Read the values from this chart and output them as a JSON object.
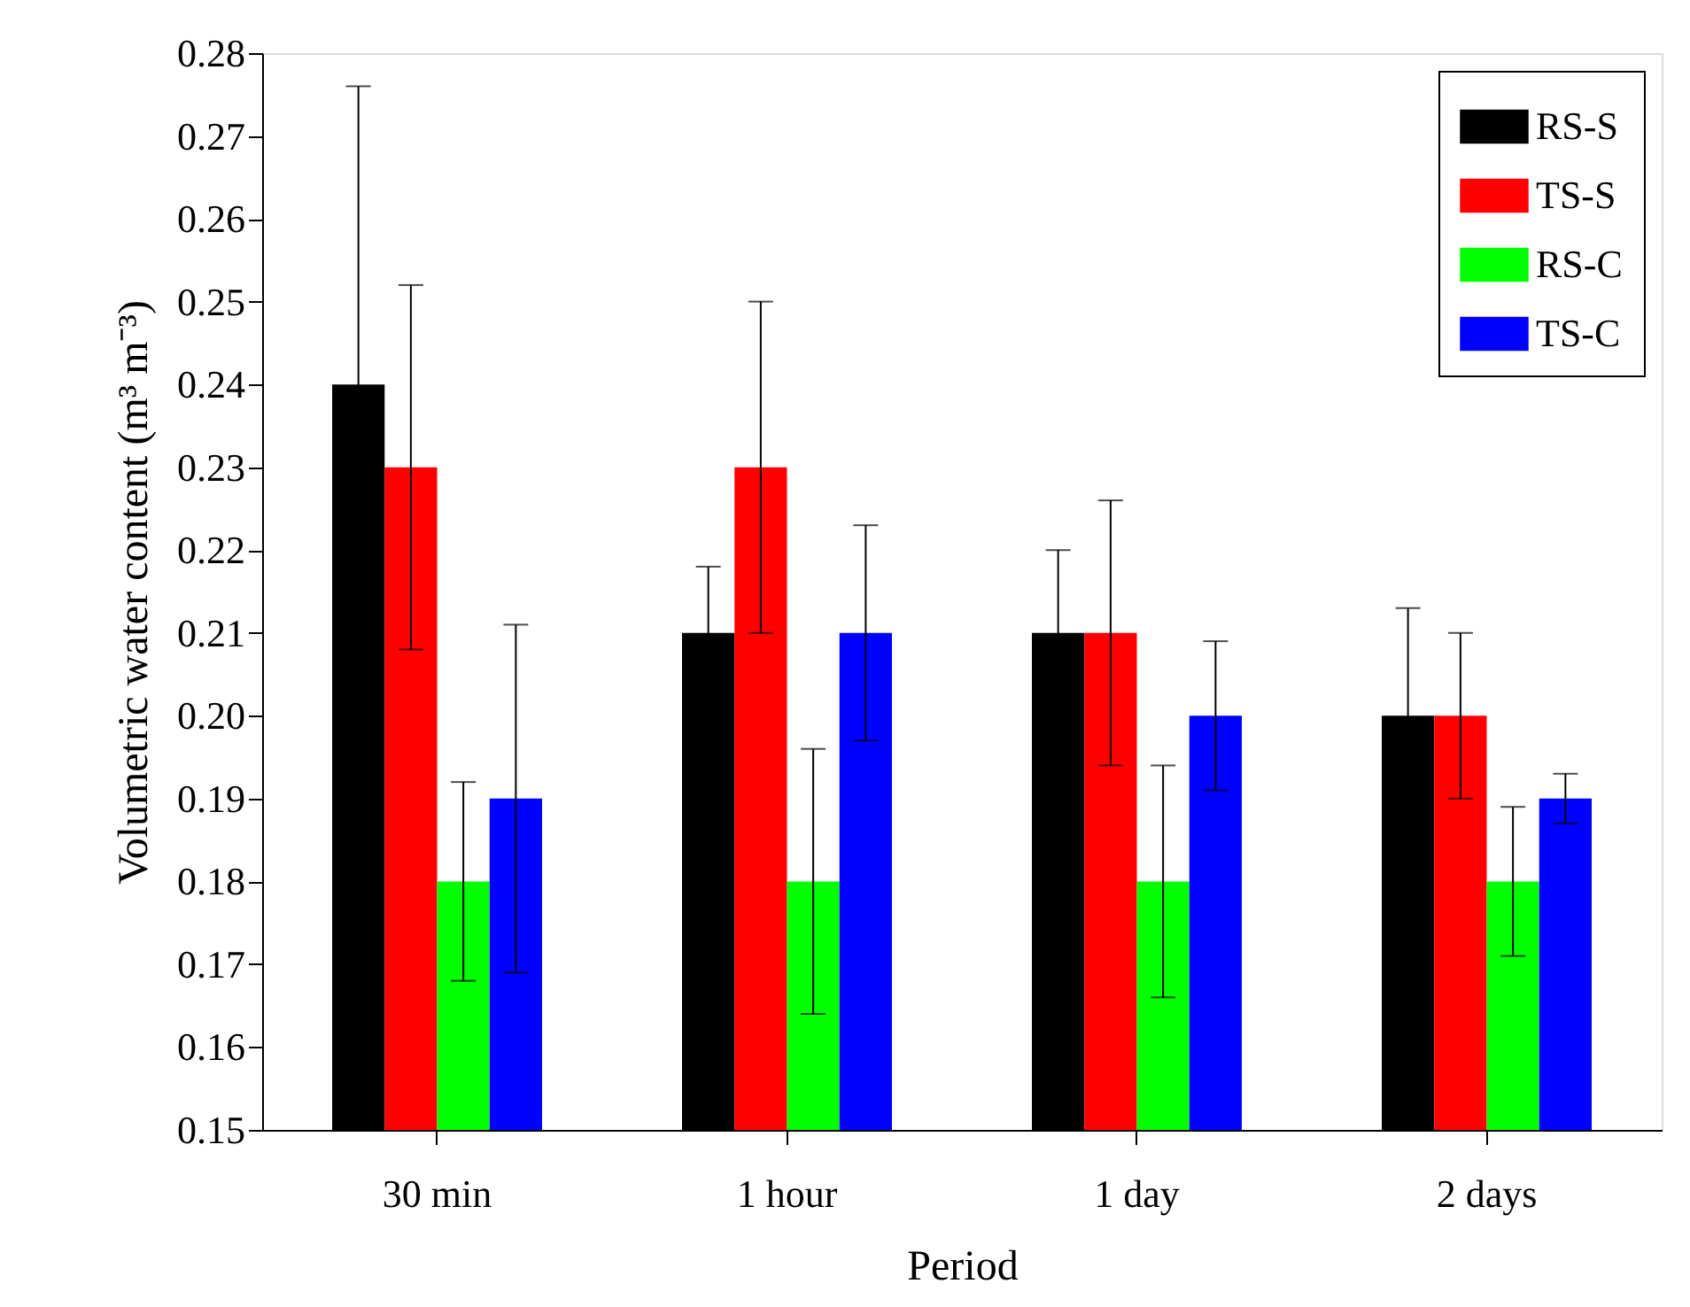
{
  "chart_data": {
    "type": "bar",
    "xlabel": "Period",
    "ylabel": "Volumetric water content (m³ m⁻³)",
    "categories": [
      "30 min",
      "1 hour",
      "1 day",
      "2 days"
    ],
    "series": [
      {
        "name": "RS-S",
        "color": "#000000",
        "values": [
          0.24,
          0.21,
          0.21,
          0.2
        ],
        "errors": [
          0.036,
          0.008,
          0.01,
          0.013
        ]
      },
      {
        "name": "TS-S",
        "color": "#ff0000",
        "values": [
          0.23,
          0.23,
          0.21,
          0.2
        ],
        "errors": [
          0.022,
          0.02,
          0.016,
          0.01
        ]
      },
      {
        "name": "RS-C",
        "color": "#00ff00",
        "values": [
          0.18,
          0.18,
          0.18,
          0.18
        ],
        "errors": [
          0.012,
          0.016,
          0.014,
          0.009
        ]
      },
      {
        "name": "TS-C",
        "color": "#0000ff",
        "values": [
          0.19,
          0.21,
          0.2,
          0.19
        ],
        "errors": [
          0.021,
          0.013,
          0.009,
          0.003
        ]
      }
    ],
    "ylim": [
      0.15,
      0.28
    ],
    "yticks": [
      {
        "value": 0.15,
        "label": "0.15"
      },
      {
        "value": 0.16,
        "label": "0.16"
      },
      {
        "value": 0.17,
        "label": "0.17"
      },
      {
        "value": 0.18,
        "label": "0.18"
      },
      {
        "value": 0.19,
        "label": "0.19"
      },
      {
        "value": 0.2,
        "label": "0.20"
      },
      {
        "value": 0.21,
        "label": "0.21"
      },
      {
        "value": 0.22,
        "label": "0.22"
      },
      {
        "value": 0.23,
        "label": "0.23"
      },
      {
        "value": 0.24,
        "label": "0.24"
      },
      {
        "value": 0.25,
        "label": "0.25"
      },
      {
        "value": 0.26,
        "label": "0.26"
      },
      {
        "value": 0.27,
        "label": "0.27"
      },
      {
        "value": 0.28,
        "label": "0.28"
      }
    ],
    "grid": false,
    "legend": "top right"
  }
}
